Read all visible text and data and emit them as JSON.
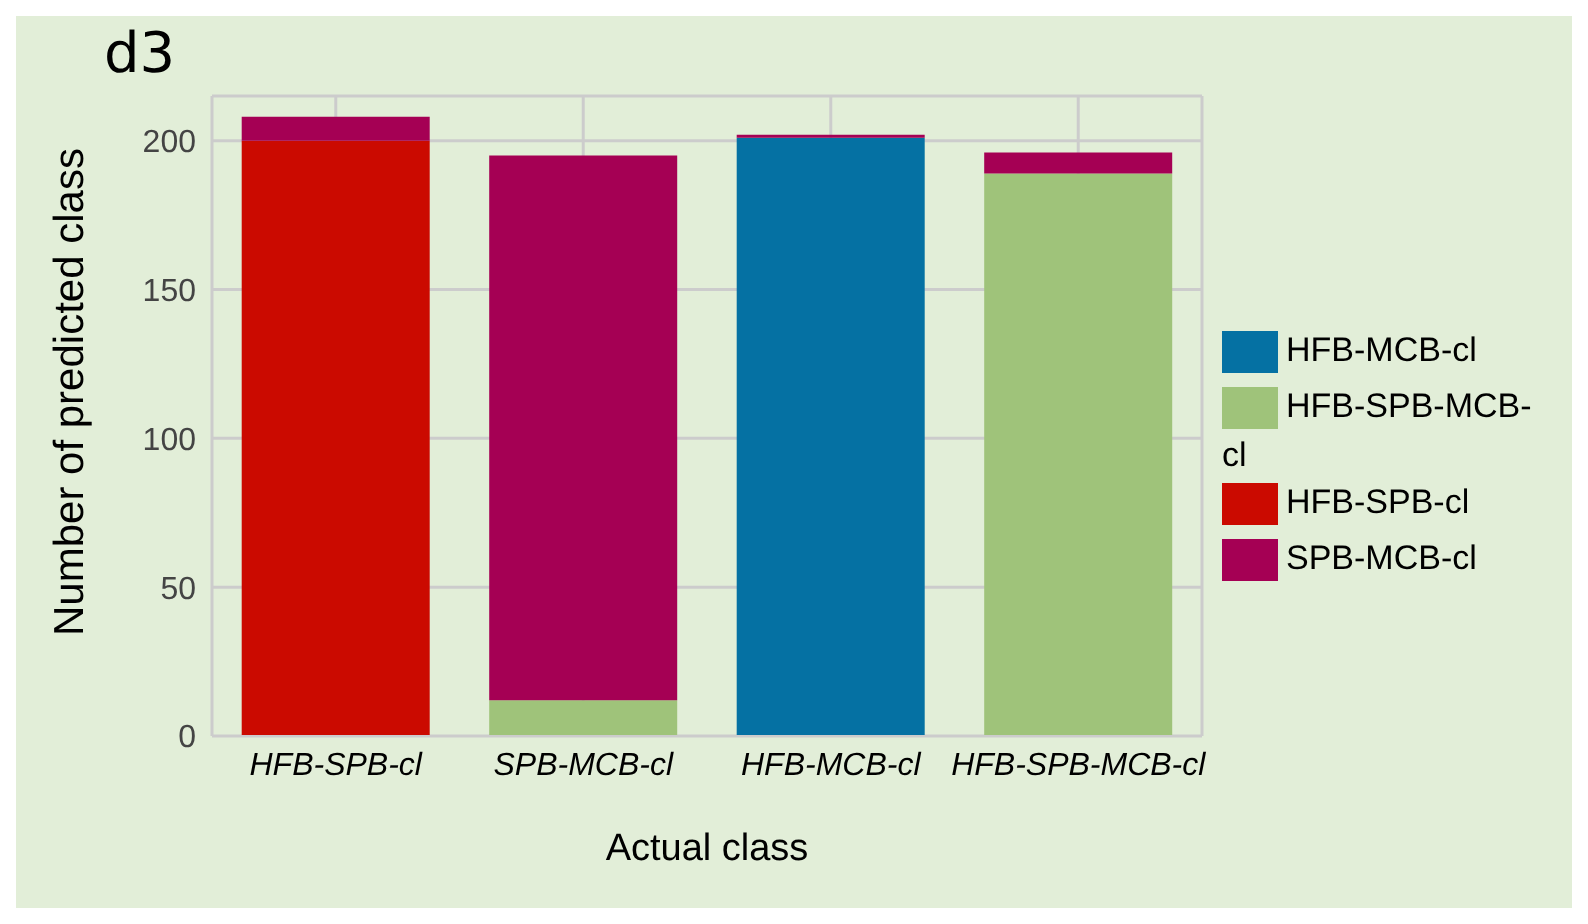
{
  "chart_data": {
    "type": "bar",
    "stacked": true,
    "xlabel": "Actual class",
    "ylabel": "Number of predicted class",
    "annotations": [
      "d3"
    ],
    "categories": [
      "HFB-SPB-cl",
      "SPB-MCB-cl",
      "HFB-MCB-cl",
      "HFB-SPB-MCB-cl"
    ],
    "series": [
      {
        "name": "HFB-MCB-cl",
        "color": "#0571a3",
        "values": [
          0,
          0,
          201,
          0
        ]
      },
      {
        "name": "HFB-SPB-MCB-cl",
        "color": "#9fc37a",
        "values": [
          0,
          12,
          0,
          189
        ]
      },
      {
        "name": "HFB-SPB-cl",
        "color": "#cb0a00",
        "values": [
          200,
          0,
          0,
          0
        ]
      },
      {
        "name": "SPB-MCB-cl",
        "color": "#a50054",
        "values": [
          8,
          183,
          1,
          7
        ]
      }
    ],
    "ylim": [
      0,
      215
    ],
    "yticks": [
      0,
      50,
      100,
      150,
      200
    ],
    "grid": true,
    "legend": "right"
  }
}
